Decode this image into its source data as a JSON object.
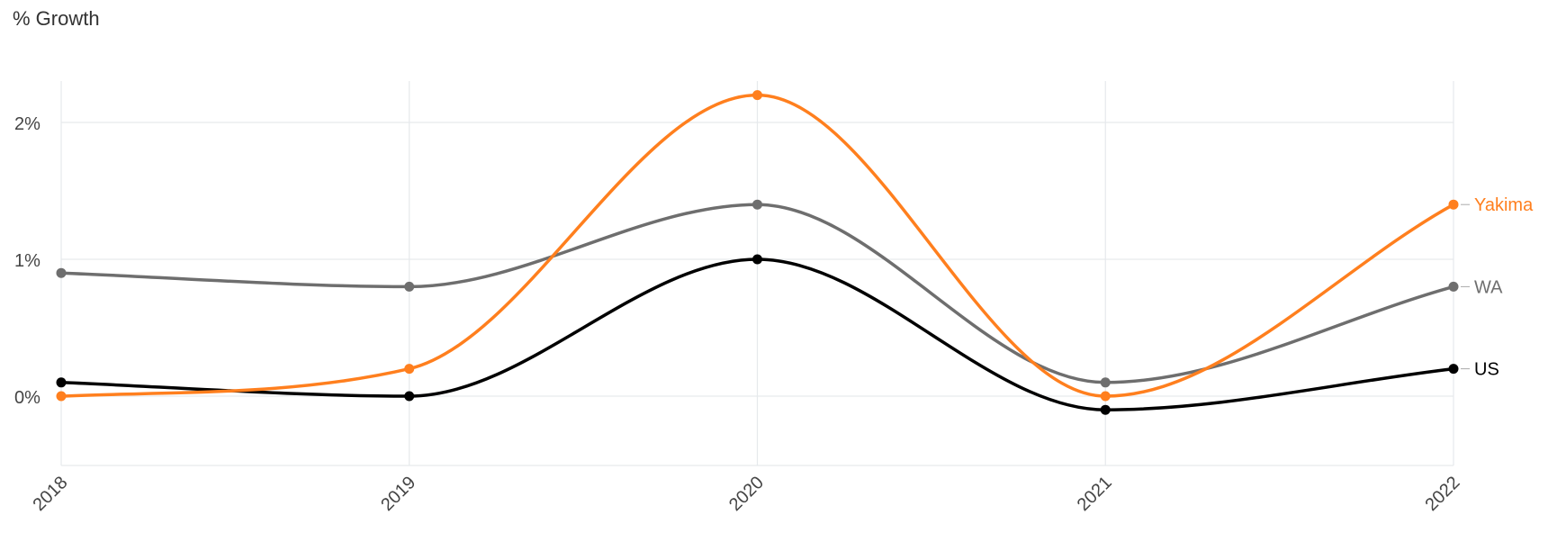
{
  "chart_data": {
    "type": "line",
    "title": "",
    "ylabel": "% Growth",
    "xlabel": "",
    "x": [
      "2018",
      "2019",
      "2020",
      "2021",
      "2022"
    ],
    "ylim": [
      -0.5,
      2.0
    ],
    "yticks": [
      0,
      1,
      2
    ],
    "ytick_labels": [
      "0%",
      "1%",
      "2%"
    ],
    "grid": true,
    "legend": "inline-right",
    "series": [
      {
        "name": "WA",
        "color": "#6e6e6e",
        "values": [
          0.9,
          0.8,
          1.4,
          0.1,
          0.8
        ]
      },
      {
        "name": "US",
        "color": "#000000",
        "values": [
          0.1,
          0.0,
          1.0,
          -0.1,
          0.2
        ]
      },
      {
        "name": "Yakima",
        "color": "#ff7f1e",
        "values": [
          0.0,
          0.2,
          2.2,
          0.0,
          1.4
        ]
      }
    ]
  }
}
